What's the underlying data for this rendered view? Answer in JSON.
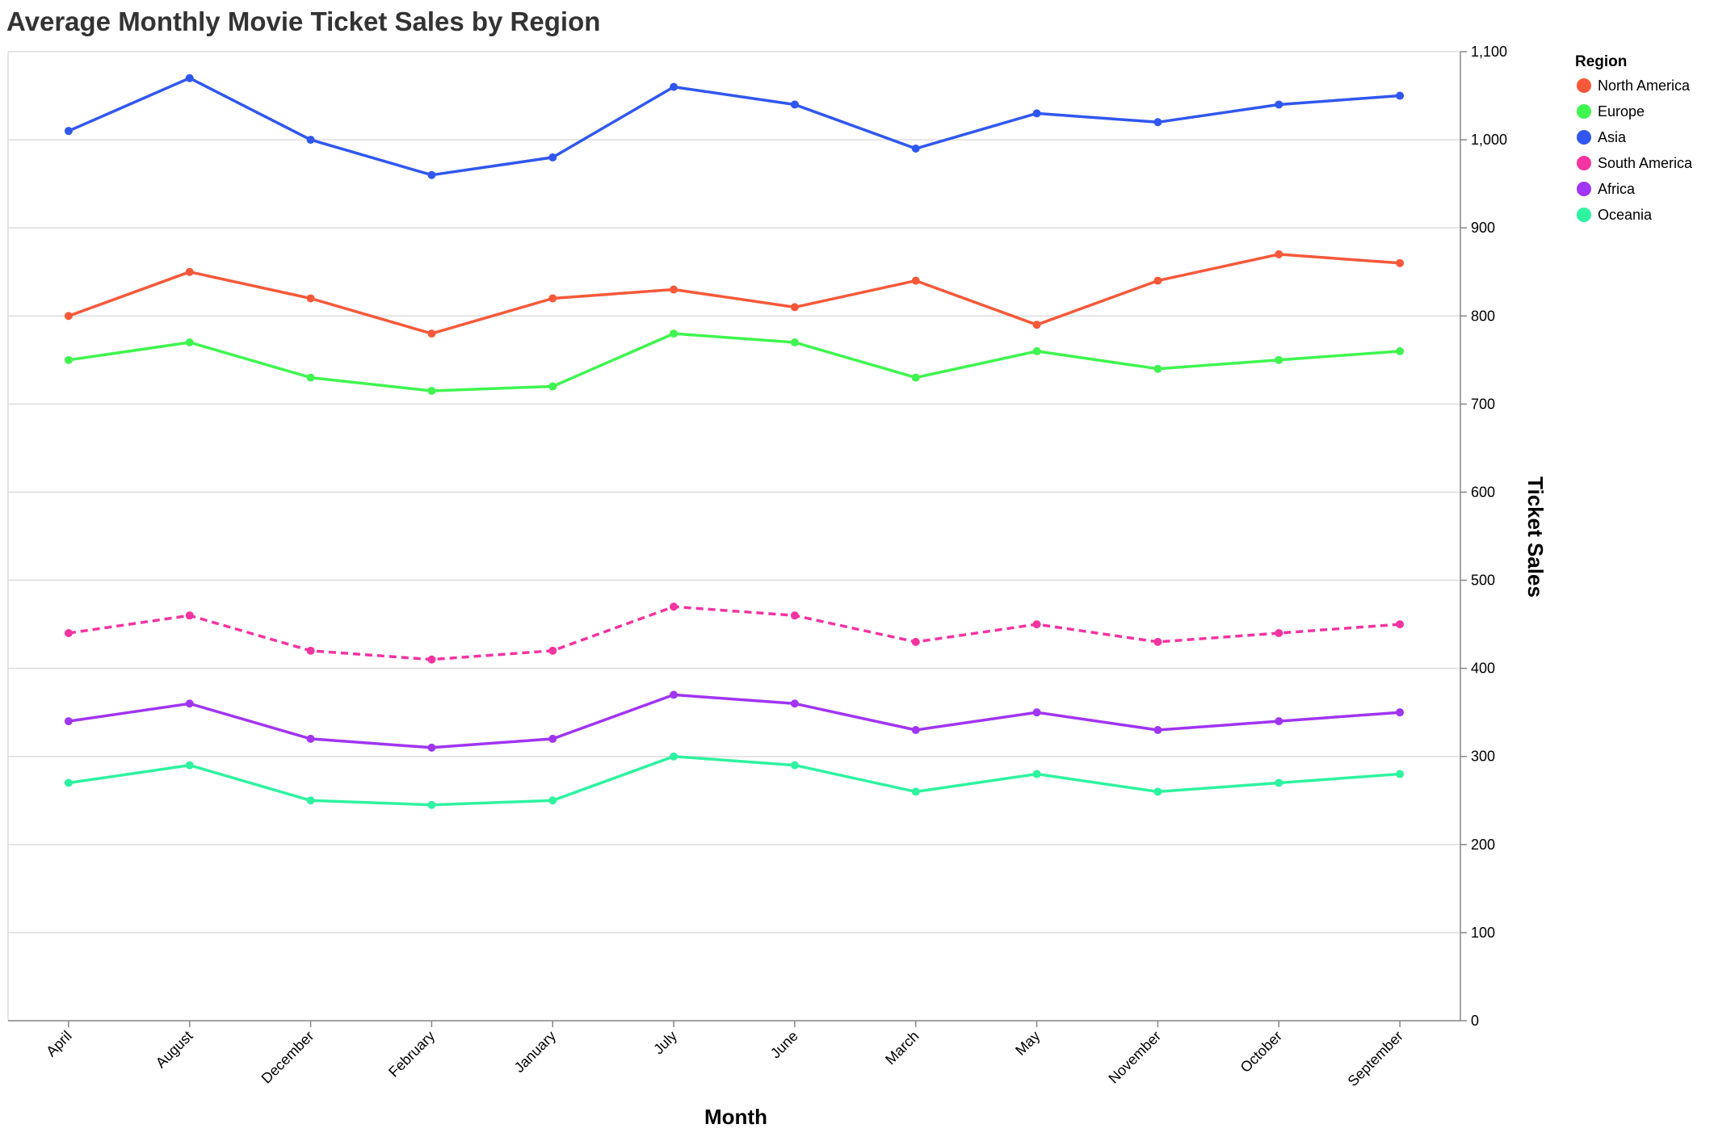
{
  "chart_data": {
    "type": "line",
    "title": "Average Monthly Movie Ticket Sales by Region",
    "xlabel": "Month",
    "ylabel": "Ticket Sales",
    "ylim": [
      0,
      1100
    ],
    "y_ticks": [
      0,
      100,
      200,
      300,
      400,
      500,
      600,
      700,
      800,
      900,
      1000,
      1100
    ],
    "y_tick_labels": [
      "0",
      "100",
      "200",
      "300",
      "400",
      "500",
      "600",
      "700",
      "800",
      "900",
      "1,000",
      "1,100"
    ],
    "y_axis_side": "right",
    "grid": true,
    "legend_title": "Region",
    "legend_position": "top-right",
    "categories": [
      "April",
      "August",
      "December",
      "February",
      "January",
      "July",
      "June",
      "March",
      "May",
      "November",
      "October",
      "September"
    ],
    "series": [
      {
        "name": "North America",
        "color": "#f6593a",
        "dashed": false,
        "values": [
          800,
          850,
          820,
          780,
          820,
          830,
          810,
          840,
          790,
          840,
          870,
          860
        ]
      },
      {
        "name": "Europe",
        "color": "#3ff54f",
        "dashed": false,
        "values": [
          750,
          770,
          730,
          715,
          720,
          780,
          770,
          730,
          760,
          740,
          750,
          760
        ]
      },
      {
        "name": "Asia",
        "color": "#3057ef",
        "dashed": false,
        "values": [
          1010,
          1070,
          1000,
          960,
          980,
          1060,
          1040,
          990,
          1030,
          1020,
          1040,
          1050
        ]
      },
      {
        "name": "South America",
        "color": "#f434a0",
        "dashed": true,
        "values": [
          440,
          460,
          420,
          410,
          420,
          470,
          460,
          430,
          450,
          430,
          440,
          450
        ]
      },
      {
        "name": "Africa",
        "color": "#a035f2",
        "dashed": false,
        "values": [
          340,
          360,
          320,
          310,
          320,
          370,
          360,
          330,
          350,
          330,
          340,
          350
        ]
      },
      {
        "name": "Oceania",
        "color": "#2ef3a0",
        "dashed": false,
        "values": [
          270,
          290,
          250,
          245,
          250,
          300,
          290,
          260,
          280,
          260,
          270,
          280
        ]
      }
    ]
  }
}
